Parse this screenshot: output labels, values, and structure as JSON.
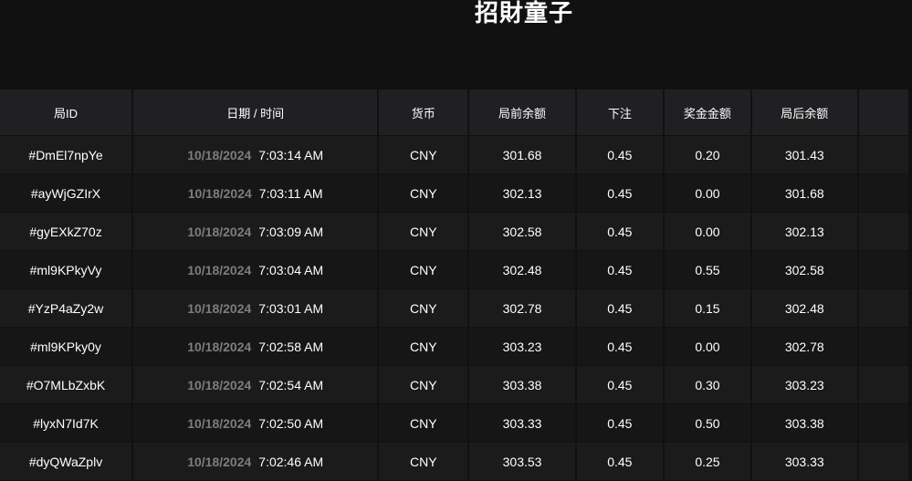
{
  "title": "招財童子",
  "table": {
    "headers": [
      "局ID",
      "日期 / 时间",
      "货币",
      "局前余额",
      "下注",
      "奖金金额",
      "局后余额",
      ""
    ],
    "rows": [
      {
        "id": "#DmEl7npYe",
        "date": "10/18/2024",
        "time": "7:03:14 AM",
        "currency": "CNY",
        "before": "301.68",
        "bet": "0.45",
        "win": "0.20",
        "after": "301.43"
      },
      {
        "id": "#ayWjGZIrX",
        "date": "10/18/2024",
        "time": "7:03:11 AM",
        "currency": "CNY",
        "before": "302.13",
        "bet": "0.45",
        "win": "0.00",
        "after": "301.68"
      },
      {
        "id": "#gyEXkZ70z",
        "date": "10/18/2024",
        "time": "7:03:09 AM",
        "currency": "CNY",
        "before": "302.58",
        "bet": "0.45",
        "win": "0.00",
        "after": "302.13"
      },
      {
        "id": "#ml9KPkyVy",
        "date": "10/18/2024",
        "time": "7:03:04 AM",
        "currency": "CNY",
        "before": "302.48",
        "bet": "0.45",
        "win": "0.55",
        "after": "302.58"
      },
      {
        "id": "#YzP4aZy2w",
        "date": "10/18/2024",
        "time": "7:03:01 AM",
        "currency": "CNY",
        "before": "302.78",
        "bet": "0.45",
        "win": "0.15",
        "after": "302.48"
      },
      {
        "id": "#ml9KPky0y",
        "date": "10/18/2024",
        "time": "7:02:58 AM",
        "currency": "CNY",
        "before": "303.23",
        "bet": "0.45",
        "win": "0.00",
        "after": "302.78"
      },
      {
        "id": "#O7MLbZxbK",
        "date": "10/18/2024",
        "time": "7:02:54 AM",
        "currency": "CNY",
        "before": "303.38",
        "bet": "0.45",
        "win": "0.30",
        "after": "303.23"
      },
      {
        "id": "#lyxN7Id7K",
        "date": "10/18/2024",
        "time": "7:02:50 AM",
        "currency": "CNY",
        "before": "303.33",
        "bet": "0.45",
        "win": "0.50",
        "after": "303.38"
      },
      {
        "id": "#dyQWaZplv",
        "date": "10/18/2024",
        "time": "7:02:46 AM",
        "currency": "CNY",
        "before": "303.53",
        "bet": "0.45",
        "win": "0.25",
        "after": "303.33"
      }
    ]
  }
}
